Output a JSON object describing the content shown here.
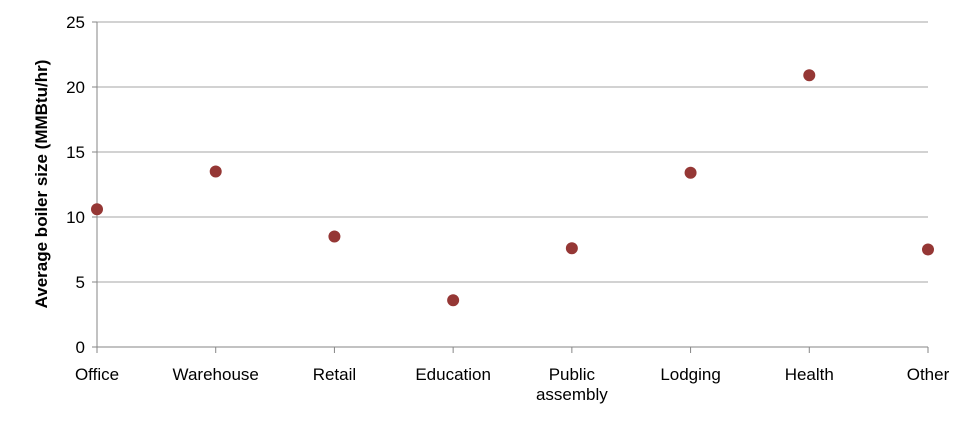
{
  "chart_data": {
    "type": "scatter",
    "title": "",
    "xlabel": "",
    "ylabel": "Average boiler size (MMBtu/hr)",
    "categories": [
      "Office",
      "Warehouse",
      "Retail",
      "Education",
      "Public assembly",
      "Lodging",
      "Health",
      "Other"
    ],
    "category_label_lines": [
      [
        "Office"
      ],
      [
        "Warehouse"
      ],
      [
        "Retail"
      ],
      [
        "Education"
      ],
      [
        "Public",
        "assembly"
      ],
      [
        "Lodging"
      ],
      [
        "Health"
      ],
      [
        "Other"
      ]
    ],
    "values": [
      10.6,
      13.5,
      8.5,
      3.6,
      7.6,
      13.4,
      20.9,
      7.5
    ],
    "ylim": [
      0,
      25
    ],
    "yticks": [
      0,
      5,
      10,
      15,
      20,
      25
    ],
    "grid": true,
    "legend": "none",
    "marker_color": "#953735",
    "grid_color": "#a6a6a6"
  }
}
